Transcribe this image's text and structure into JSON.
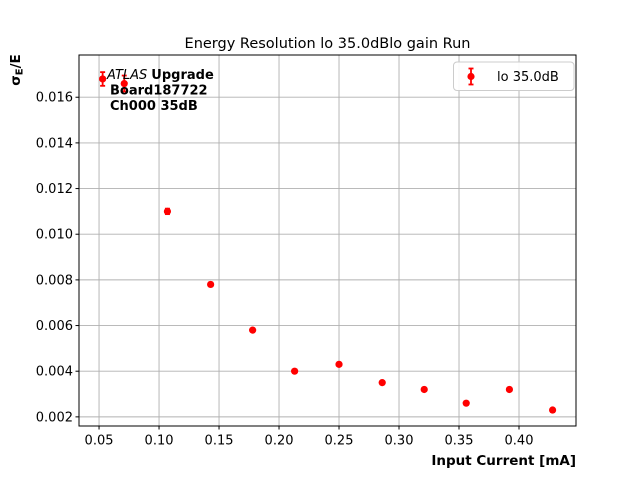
{
  "chart_data": {
    "type": "scatter",
    "title": "Energy Resolution lo 35.0dBlo gain Run",
    "xlabel": "Input Current [mA]",
    "ylabel": "σE/E",
    "ylabel_parts": {
      "base": "σ",
      "sub": "E",
      "rest": "/E"
    },
    "xlim": [
      0.0333,
      0.4475
    ],
    "ylim": [
      0.0016,
      0.01785
    ],
    "xticks": [
      0.05,
      0.1,
      0.15,
      0.2,
      0.25,
      0.3,
      0.35,
      0.4
    ],
    "xtick_labels": [
      "0.05",
      "0.10",
      "0.15",
      "0.20",
      "0.25",
      "0.30",
      "0.35",
      "0.40"
    ],
    "yticks": [
      0.002,
      0.004,
      0.006,
      0.008,
      0.01,
      0.012,
      0.014,
      0.016
    ],
    "ytick_labels": [
      "0.002",
      "0.004",
      "0.006",
      "0.008",
      "0.010",
      "0.012",
      "0.014",
      "0.016"
    ],
    "grid": true,
    "legend": {
      "position": "upper right",
      "entries": [
        {
          "label": "lo 35.0dB",
          "marker": "errorbar-circle",
          "color": "#ff0000"
        }
      ]
    },
    "annotation": {
      "experiment": "ATLAS",
      "upgrade": "Upgrade",
      "board": "Board187722",
      "channel": "Ch000 35dB"
    },
    "series": [
      {
        "name": "lo 35.0dB",
        "color": "#ff0000",
        "marker": "circle",
        "x": [
          0.053,
          0.071,
          0.107,
          0.143,
          0.178,
          0.213,
          0.25,
          0.286,
          0.321,
          0.356,
          0.392,
          0.428
        ],
        "y": [
          0.0168,
          0.0166,
          0.011,
          0.0078,
          0.0058,
          0.004,
          0.0043,
          0.0035,
          0.0032,
          0.0026,
          0.0032,
          0.0023
        ],
        "yerr": [
          0.0003,
          0.00035,
          0.00012,
          8e-05,
          6e-05,
          5e-05,
          5e-05,
          5e-05,
          5e-05,
          5e-05,
          5e-05,
          5e-05
        ]
      }
    ]
  },
  "colors": {
    "marker": "#ff0000",
    "grid": "#b0b0b0",
    "axis": "#000000",
    "legend_border": "#cccccc",
    "background": "#ffffff"
  }
}
